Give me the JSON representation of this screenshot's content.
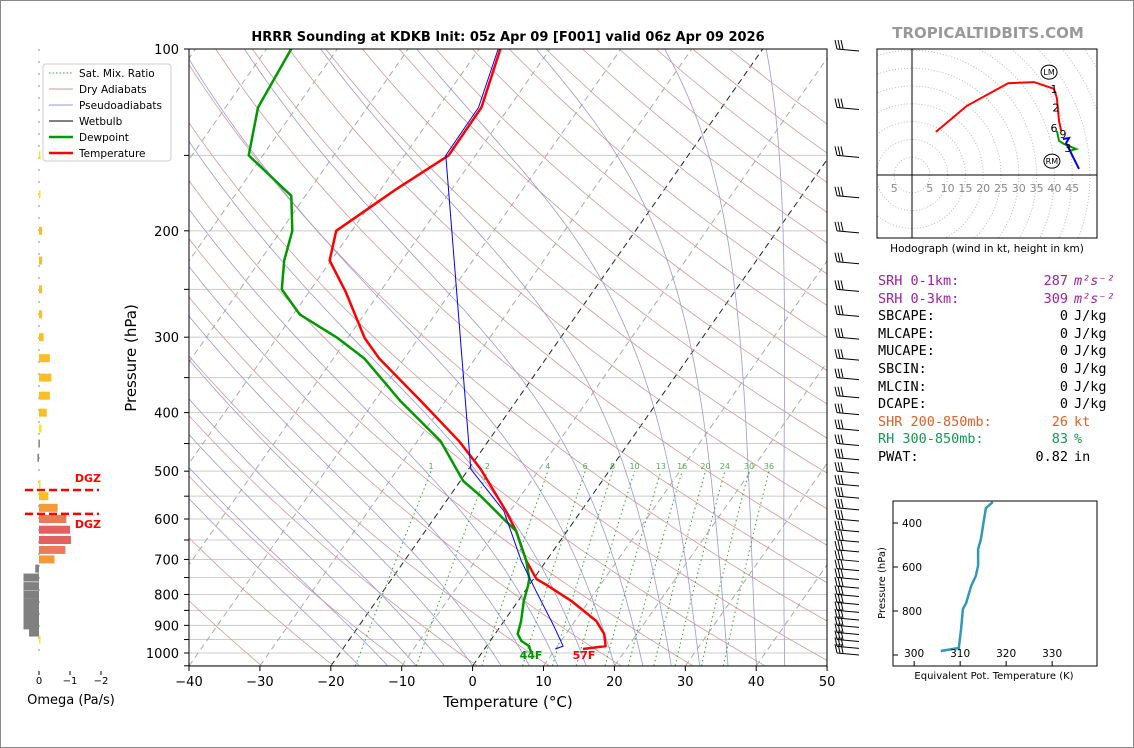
{
  "title": "HRRR Sounding at KDKB Init: 05z Apr 09 [F001] valid 06z Apr 09 2026",
  "watermark": "TROPICALTIDBITS.COM",
  "legend": [
    "Sat. Mix. Ratio",
    "Dry Adiabats",
    "Pseudoadiabats",
    "Wetbulb",
    "Dewpoint",
    "Temperature"
  ],
  "colors": {
    "temperature": "#ff0000",
    "dewpoint": "#009900",
    "wetbulb": "#0000ff",
    "theta_e": "#3399b3",
    "srh": "#a020a0",
    "shr": "#e0602a",
    "rh": "#119955"
  },
  "chart_data": [
    {
      "type": "line",
      "name": "skewt",
      "title": "HRRR Sounding at KDKB Init: 05z Apr 09 [F001] valid 06z Apr 09 2026",
      "xlabel": "Temperature (°C)",
      "ylabel": "Pressure (hPa)",
      "xlim": [
        -40,
        50
      ],
      "ylim": [
        1050,
        100
      ],
      "xticks": [
        "−40",
        "−30",
        "−20",
        "−10",
        "0",
        "10",
        "20",
        "30",
        "40",
        "50"
      ],
      "yticks": [
        "100",
        "200",
        "300",
        "400",
        "500",
        "600",
        "700",
        "800",
        "900",
        "1000"
      ],
      "mixing_ratio_labels": [
        "1",
        "2",
        "4",
        "6",
        "8",
        "10",
        "13",
        "16",
        "20",
        "24",
        "30",
        "36"
      ],
      "surface_labels": {
        "dewpoint": "44F",
        "temperature": "57F"
      },
      "series": [
        {
          "name": "Temperature",
          "p": [
            100,
            125,
            150,
            171,
            200,
            224,
            252,
            301,
            325,
            383,
            446,
            496,
            582,
            628,
            704,
            754,
            774,
            820,
            885,
            930,
            974,
            985
          ],
          "T": [
            -57,
            -53.9,
            -53.8,
            -57.9,
            -62.2,
            -60.2,
            -54.9,
            -47.6,
            -43.6,
            -33.4,
            -24.1,
            -18.3,
            -10.6,
            -7.2,
            -2.8,
            0.4,
            2.7,
            7.5,
            13,
            15.4,
            16.8,
            13.9
          ]
        },
        {
          "name": "Dewpoint",
          "p": [
            100,
            125,
            150,
            175,
            200,
            224,
            250,
            275,
            301,
            325,
            383,
            446,
            519,
            550,
            605,
            628,
            704,
            754,
            774,
            820,
            885,
            930,
            955,
            974,
            1000
          ],
          "T": [
            -86.5,
            -85.4,
            -82,
            -72,
            -68.4,
            -66.6,
            -64.1,
            -59.1,
            -51.4,
            -45.7,
            -36.3,
            -26.7,
            -19.6,
            -15.6,
            -9.6,
            -7.2,
            -2.8,
            -0.6,
            -0.1,
            0.8,
            2.4,
            3.2,
            4.4,
            6,
            7
          ]
        },
        {
          "name": "Wetbulb",
          "p": [
            100,
            125,
            150,
            496,
            582,
            704,
            789,
            902,
            974,
            985
          ],
          "T": [
            -57.3,
            -54.3,
            -54.2,
            -19.7,
            -10.9,
            -3.5,
            1.5,
            7.5,
            10.8,
            10
          ]
        }
      ]
    },
    {
      "type": "bar",
      "name": "omega",
      "xlabel": "Omega (Pa/s)",
      "xticks": [
        "0",
        "−1",
        "−2"
      ],
      "dgz_label": "DGZ",
      "dgz": [
        525,
        575
      ],
      "p": [
        150,
        174,
        200,
        224,
        250,
        275,
        300,
        325,
        350,
        375,
        400,
        425,
        450,
        475,
        525,
        550,
        575,
        600,
        625,
        650,
        675,
        700,
        725,
        750,
        775,
        800,
        825,
        850,
        875,
        900,
        925,
        950
      ],
      "omega": [
        -0.03,
        -0.02,
        -0.1,
        -0.1,
        -0.1,
        -0.1,
        -0.15,
        -0.35,
        -0.4,
        -0.35,
        -0.25,
        -0.08,
        0.02,
        0.05,
        -0.05,
        -0.3,
        -0.6,
        -0.88,
        -1.0,
        -1.03,
        -0.85,
        -0.5,
        0.12,
        0.5,
        0.5,
        0.5,
        0.5,
        0.5,
        0.5,
        0.5,
        0.32,
        -0.02
      ]
    },
    {
      "type": "line",
      "name": "hodograph",
      "caption": "Hodograph (wind in kt, height in km)",
      "ring_labels": [
        "5",
        "5",
        "10",
        "15",
        "20",
        "25",
        "30",
        "35",
        "40",
        "45"
      ],
      "segments": [
        {
          "color": "#ff0000",
          "u": [
            6.7,
            15.4,
            27,
            34.3,
            39.9,
            40.7,
            41.3,
            41.9
          ],
          "v": [
            12.1,
            19.4,
            25.8,
            26.1,
            24.2,
            21.6,
            15.2,
            12.4
          ]
        },
        {
          "color": "#009900",
          "u": [
            40.7,
            41.3,
            42.7,
            46.1,
            44.1
          ],
          "v": [
            12.4,
            9.6,
            8.7,
            7.3,
            6.7
          ]
        },
        {
          "color": "#0000ff",
          "u": [
            42.4,
            44.1,
            43.3,
            46.9
          ],
          "v": [
            10.1,
            10.4,
            9,
            1.7
          ]
        }
      ],
      "height_labels": [
        {
          "t": "1",
          "u": 39.9,
          "v": 24.2
        },
        {
          "t": "2",
          "u": 40.4,
          "v": 19
        },
        {
          "t": "6",
          "u": 39.9,
          "v": 13.2
        },
        {
          "t": "9",
          "u": 42.4,
          "v": 11.5
        },
        {
          "t": "3",
          "u": 43.8,
          "v": 7.6
        }
      ],
      "motions": [
        {
          "t": "LM",
          "u": 38.5,
          "v": 28.9
        },
        {
          "t": "RM",
          "u": 39.3,
          "v": 3.9
        }
      ]
    },
    {
      "type": "line",
      "name": "theta_e",
      "xlabel": "Equivalent Pot. Temperature (K)",
      "ylabel": "Pressure (hPa)",
      "xticks": [
        "300",
        "310",
        "320",
        "330"
      ],
      "yticks": [
        "400",
        "600",
        "800"
      ],
      "p": [
        305,
        332,
        382,
        473,
        518,
        595,
        641,
        686,
        764,
        791,
        882,
        968,
        982
      ],
      "theta_e": [
        317.1,
        315.6,
        315.2,
        314.5,
        313.9,
        313.9,
        313.4,
        312.4,
        311.3,
        310.6,
        310.2,
        309.7,
        305.8
      ]
    }
  ],
  "stats": [
    {
      "label": "SRH 0-1km:",
      "value": "287",
      "unit": "m²s⁻²",
      "color": "#a020a0"
    },
    {
      "label": "SRH 0-3km:",
      "value": "309",
      "unit": "m²s⁻²",
      "color": "#a020a0"
    },
    {
      "label": "SBCAPE:",
      "value": "0",
      "unit": "J/kg",
      "color": "#000"
    },
    {
      "label": "MLCAPE:",
      "value": "0",
      "unit": "J/kg",
      "color": "#000"
    },
    {
      "label": "MUCAPE:",
      "value": "0",
      "unit": "J/kg",
      "color": "#000"
    },
    {
      "label": "SBCIN:",
      "value": "0",
      "unit": "J/kg",
      "color": "#000"
    },
    {
      "label": "MLCIN:",
      "value": "0",
      "unit": "J/kg",
      "color": "#000"
    },
    {
      "label": "DCAPE:",
      "value": "0",
      "unit": "J/kg",
      "color": "#000"
    },
    {
      "label": "SHR 200-850mb:",
      "value": "26",
      "unit": "kt",
      "color": "#e0602a"
    },
    {
      "label": "RH 300-850mb:",
      "value": "83",
      "unit": "%",
      "color": "#119955"
    },
    {
      "label": "PWAT:",
      "value": "0.82",
      "unit": "in",
      "color": "#000"
    }
  ]
}
